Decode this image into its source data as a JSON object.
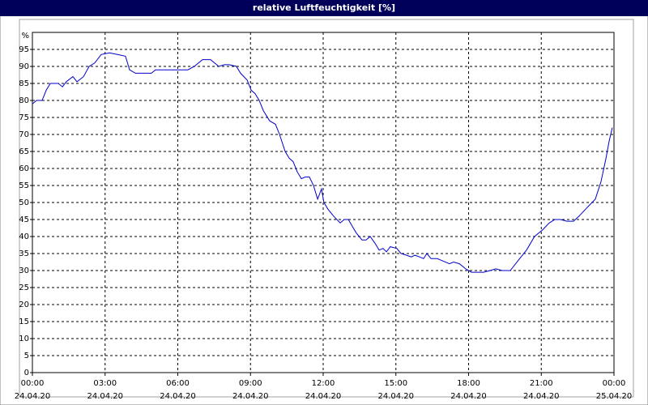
{
  "chart_data": {
    "type": "line",
    "title": "relative Luftfeuchtigkeit [%]",
    "y_label": "%",
    "x": [
      0,
      0.17,
      0.4,
      0.57,
      0.74,
      1.07,
      1.24,
      1.4,
      1.67,
      1.84,
      2.11,
      2.34,
      2.57,
      2.84,
      3.18,
      3.51,
      3.84,
      4.01,
      4.25,
      4.68,
      4.91,
      5.08,
      6.42,
      6.68,
      7.02,
      7.35,
      7.52,
      7.69,
      7.92,
      8.12,
      8.42,
      8.59,
      8.86,
      9.03,
      9.19,
      9.36,
      9.53,
      9.79,
      10.03,
      10.2,
      10.43,
      10.6,
      10.76,
      10.93,
      11.1,
      11.26,
      11.43,
      11.6,
      11.77,
      11.93,
      12.03,
      12.2,
      12.43,
      12.7,
      12.87,
      13.04,
      13.2,
      13.37,
      13.6,
      13.77,
      13.94,
      14.14,
      14.31,
      14.47,
      14.61,
      14.77,
      15.04,
      15.21,
      15.44,
      15.64,
      15.78,
      15.98,
      16.14,
      16.28,
      16.45,
      16.71,
      16.88,
      17.21,
      17.38,
      17.62,
      17.88,
      18.12,
      18.38,
      18.62,
      18.89,
      19.12,
      19.39,
      19.72,
      20.05,
      20.39,
      20.72,
      21.06,
      21.33,
      21.56,
      21.79,
      22.06,
      22.33,
      22.56,
      22.89,
      23.23,
      23.46,
      23.67,
      23.8,
      23.93
    ],
    "series": [
      {
        "name": "relative Luftfeuchtigkeit",
        "color": "#0000cc",
        "values": [
          79,
          80,
          80,
          83,
          85,
          85,
          84,
          85.5,
          87,
          85.5,
          87,
          90,
          91,
          93.5,
          94,
          93.5,
          93,
          89,
          88,
          88,
          88,
          89,
          89,
          90,
          92,
          92,
          91,
          90,
          90.5,
          90.5,
          90,
          88,
          86,
          83,
          82,
          80,
          77,
          74,
          73,
          70,
          65,
          63,
          62,
          59,
          57,
          57.5,
          57.5,
          55,
          51,
          54,
          50,
          48,
          46,
          44,
          45,
          45,
          43,
          41,
          39,
          39,
          40,
          38,
          36,
          36.5,
          35.5,
          37,
          36.5,
          35,
          34.5,
          34,
          34.5,
          34,
          33.5,
          35,
          33.5,
          33.5,
          33,
          32,
          32.5,
          32,
          30.5,
          29.5,
          29.5,
          29.5,
          30,
          30.5,
          30,
          30,
          33,
          36,
          40,
          42,
          44,
          45,
          45,
          44.5,
          44.5,
          46,
          48.5,
          51,
          56,
          63,
          68,
          72
        ]
      }
    ],
    "xlim": [
      0,
      24
    ],
    "xticks": [
      {
        "value": 0,
        "label": "00:00"
      },
      {
        "value": 3,
        "label": "03:00"
      },
      {
        "value": 6,
        "label": "06:00"
      },
      {
        "value": 9,
        "label": "09:00"
      },
      {
        "value": 12,
        "label": "12:00"
      },
      {
        "value": 15,
        "label": "15:00"
      },
      {
        "value": 18,
        "label": "18:00"
      },
      {
        "value": 21,
        "label": "21:00"
      },
      {
        "value": 24,
        "label": "00:00"
      }
    ],
    "xtick_dates": [
      "24.04.20",
      "24.04.20",
      "24.04.20",
      "24.04.20",
      "24.04.20",
      "24.04.20",
      "24.04.20",
      "24.04.20",
      "25.04.20"
    ],
    "ylim": [
      0,
      100
    ],
    "yticks": [
      0,
      5,
      10,
      15,
      20,
      25,
      30,
      35,
      40,
      45,
      50,
      55,
      60,
      65,
      70,
      75,
      80,
      85,
      90,
      95
    ],
    "grid": true
  }
}
